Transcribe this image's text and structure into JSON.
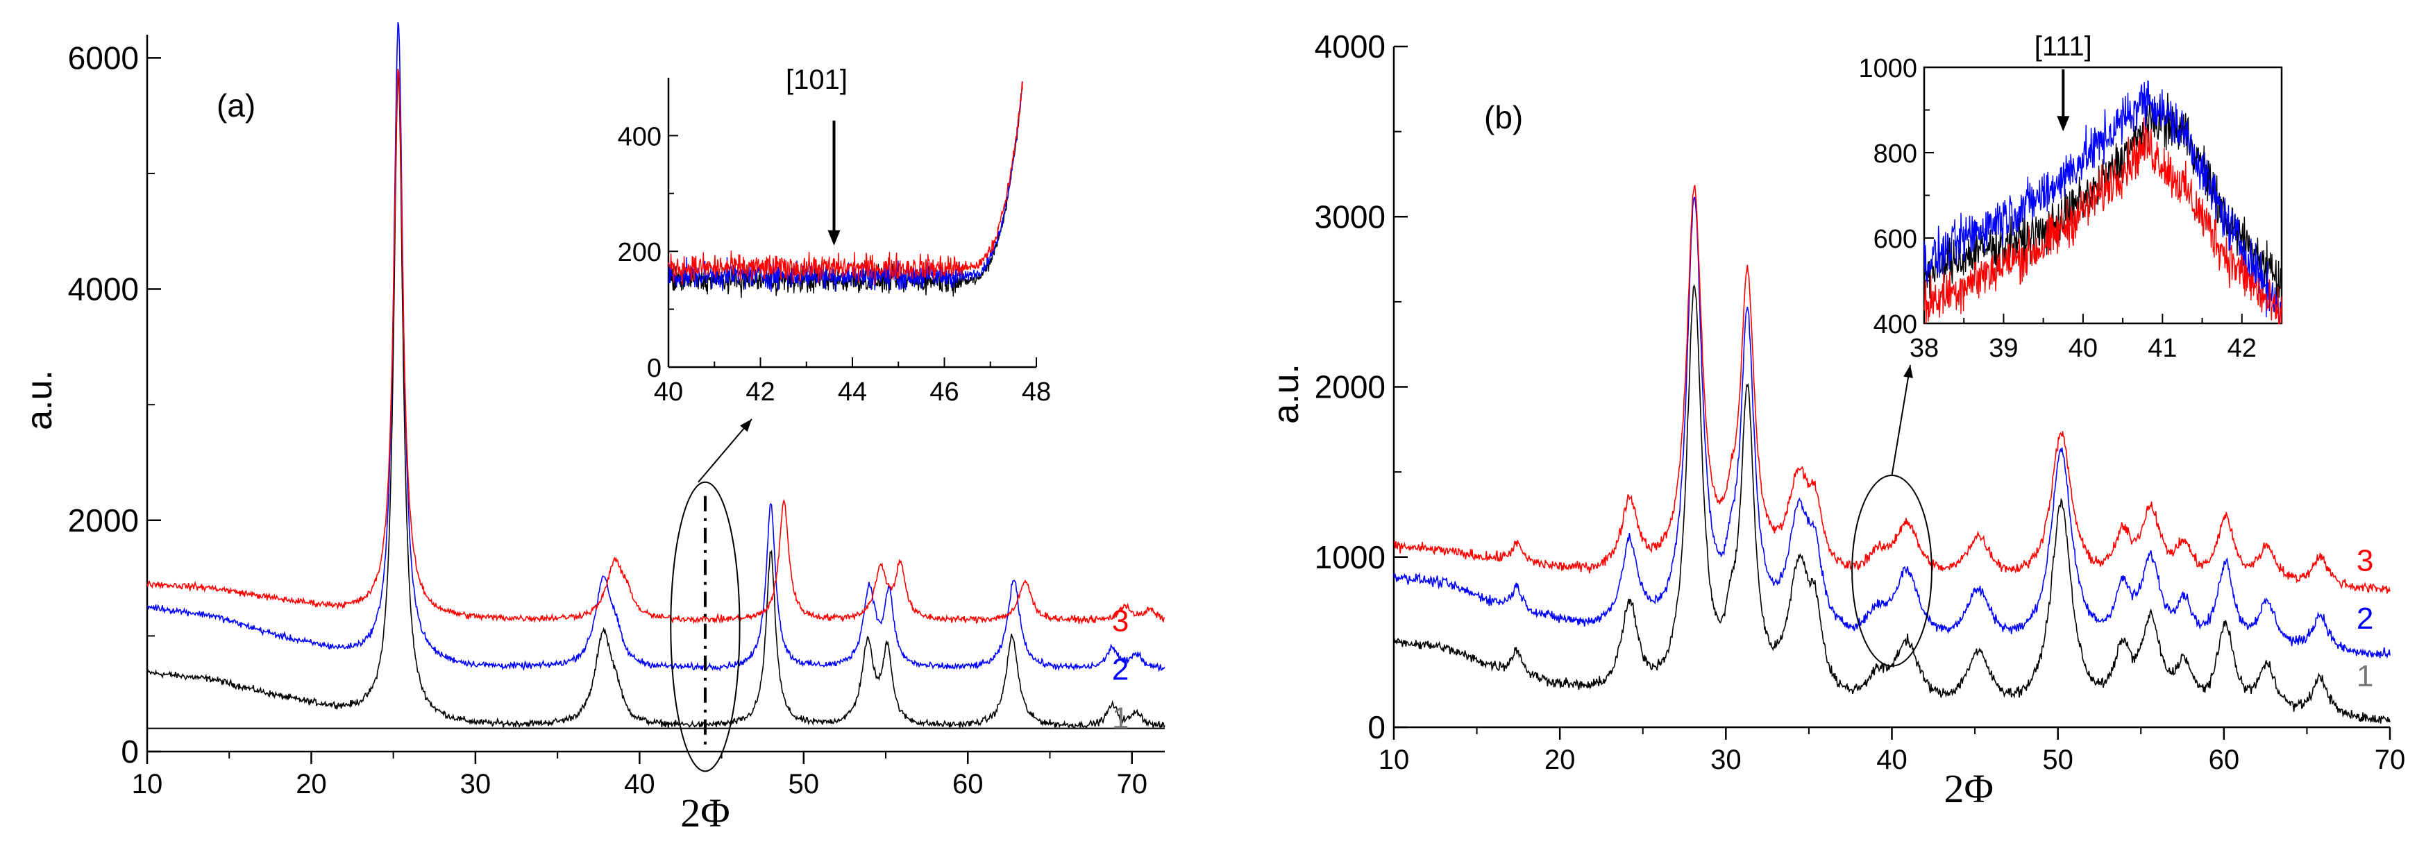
{
  "chart_data": [
    {
      "type": "line",
      "panel_label": "(a)",
      "xlabel": "2Φ",
      "ylabel": "a.u.",
      "xlim": [
        10,
        72
      ],
      "ylim": [
        0,
        6200
      ],
      "x_ticks": [
        10,
        20,
        30,
        40,
        50,
        60,
        70
      ],
      "y_ticks": [
        0,
        2000,
        4000,
        6000
      ],
      "baseline": 200,
      "series": [
        {
          "name": "1",
          "color": "#000000",
          "offset": 0,
          "bg": [
            [
              10,
              480
            ],
            [
              14,
              420
            ],
            [
              18,
              270
            ],
            [
              22,
              140
            ],
            [
              25,
              60
            ],
            [
              30,
              20
            ],
            [
              40,
              10
            ],
            [
              72,
              10
            ]
          ],
          "peaks": [
            [
              25.3,
              5600,
              0.35
            ],
            [
              37.8,
              800,
              0.6
            ],
            [
              38.6,
              180,
              0.4
            ],
            [
              48.0,
              1500,
              0.35
            ],
            [
              53.9,
              700,
              0.45
            ],
            [
              55.1,
              650,
              0.35
            ],
            [
              62.7,
              780,
              0.45
            ],
            [
              68.8,
              180,
              0.4
            ],
            [
              70.3,
              120,
              0.4
            ]
          ]
        },
        {
          "name": "2",
          "color": "#0000ff",
          "offset": 490,
          "bg": [
            [
              10,
              560
            ],
            [
              14,
              480
            ],
            [
              18,
              300
            ],
            [
              22,
              150
            ],
            [
              25,
              70
            ],
            [
              30,
              30
            ],
            [
              40,
              20
            ],
            [
              72,
              20
            ]
          ],
          "peaks": [
            [
              25.3,
              5550,
              0.35
            ],
            [
              37.8,
              770,
              0.6
            ],
            [
              38.6,
              170,
              0.4
            ],
            [
              48.0,
              1420,
              0.35
            ],
            [
              54.0,
              680,
              0.45
            ],
            [
              55.2,
              620,
              0.35
            ],
            [
              62.8,
              770,
              0.45
            ],
            [
              68.8,
              180,
              0.4
            ],
            [
              70.3,
              130,
              0.4
            ]
          ]
        },
        {
          "name": "3",
          "color": "#ff0000",
          "offset": 920,
          "bg": [
            [
              10,
              330
            ],
            [
              14,
              290
            ],
            [
              18,
              190
            ],
            [
              22,
              100
            ],
            [
              25,
              50
            ],
            [
              30,
              20
            ],
            [
              40,
              10
            ],
            [
              72,
              10
            ]
          ],
          "peaks": [
            [
              25.3,
              4750,
              0.35
            ],
            [
              38.5,
              500,
              0.6
            ],
            [
              39.3,
              140,
              0.4
            ],
            [
              48.8,
              1030,
              0.35
            ],
            [
              54.7,
              440,
              0.45
            ],
            [
              55.9,
              470,
              0.35
            ],
            [
              63.5,
              340,
              0.45
            ],
            [
              69.6,
              130,
              0.4
            ],
            [
              71.1,
              90,
              0.4
            ]
          ]
        }
      ],
      "curve_labels": [
        {
          "text": "1",
          "x": 69.3,
          "y": 200,
          "color": "#777777"
        },
        {
          "text": "2",
          "x": 69.3,
          "y": 620,
          "color": "#0000ff"
        },
        {
          "text": "3",
          "x": 69.3,
          "y": 1040,
          "color": "#ff0000"
        }
      ],
      "ellipse": {
        "cx": 44,
        "cy": 1080,
        "rx": 2.1,
        "ry": 1250
      },
      "dashdot_x": 44,
      "inset": {
        "xlim": [
          40,
          48
        ],
        "ylim": [
          0,
          500
        ],
        "x_ticks": [
          40,
          42,
          44,
          46,
          48
        ],
        "y_ticks": [
          0,
          200,
          400
        ],
        "peak_label": "[101]",
        "arrow_x": 43.6,
        "arrow_from": 420,
        "arrow_to": 210,
        "series": [
          {
            "name": "1",
            "color": "#000000",
            "level": 150
          },
          {
            "name": "2",
            "color": "#0000ff",
            "level": 158
          },
          {
            "name": "3",
            "color": "#ff0000",
            "level": 172
          }
        ],
        "rise_start": 46.4,
        "rise_end": 47.7,
        "rise_top": 490
      }
    },
    {
      "type": "line",
      "panel_label": "(b)",
      "xlabel": "2Φ",
      "ylabel": "a.u.",
      "xlim": [
        10,
        70
      ],
      "ylim": [
        0,
        4000
      ],
      "x_ticks": [
        10,
        20,
        30,
        40,
        50,
        60,
        70
      ],
      "y_ticks": [
        0,
        1000,
        2000,
        3000,
        4000
      ],
      "baseline": 0,
      "series": [
        {
          "name": "1",
          "color": "#000000",
          "offset": 0,
          "bg": [
            [
              10,
              500
            ],
            [
              13,
              460
            ],
            [
              17,
              300
            ],
            [
              22,
              180
            ],
            [
              30,
              100
            ],
            [
              40,
              60
            ],
            [
              55,
              40
            ],
            [
              70,
              30
            ]
          ],
          "peaks": [
            [
              17.4,
              150,
              0.4
            ],
            [
              24.2,
              520,
              0.6
            ],
            [
              28.1,
              2400,
              0.55
            ],
            [
              30.3,
              250,
              0.4
            ],
            [
              31.3,
              1750,
              0.5
            ],
            [
              34.4,
              760,
              0.8
            ],
            [
              35.4,
              380,
              0.5
            ],
            [
              39.1,
              150,
              0.8
            ],
            [
              40.9,
              380,
              0.9
            ],
            [
              45.2,
              330,
              0.9
            ],
            [
              50.2,
              1230,
              0.75
            ],
            [
              53.9,
              330,
              0.6
            ],
            [
              55.6,
              520,
              0.7
            ],
            [
              57.6,
              260,
              0.6
            ],
            [
              60.1,
              520,
              0.6
            ],
            [
              62.6,
              280,
              0.7
            ],
            [
              65.8,
              230,
              0.6
            ]
          ]
        },
        {
          "name": "2",
          "color": "#0000ff",
          "offset": 380,
          "bg": [
            [
              10,
              500
            ],
            [
              13,
              460
            ],
            [
              17,
              300
            ],
            [
              22,
              180
            ],
            [
              30,
              100
            ],
            [
              40,
              60
            ],
            [
              55,
              40
            ],
            [
              70,
              30
            ]
          ],
          "peaks": [
            [
              17.4,
              140,
              0.4
            ],
            [
              24.2,
              500,
              0.6
            ],
            [
              28.1,
              2550,
              0.55
            ],
            [
              30.3,
              230,
              0.4
            ],
            [
              31.3,
              1820,
              0.5
            ],
            [
              34.4,
              700,
              0.8
            ],
            [
              35.4,
              360,
              0.5
            ],
            [
              39.1,
              140,
              0.8
            ],
            [
              40.9,
              420,
              0.9
            ],
            [
              45.2,
              320,
              0.9
            ],
            [
              50.2,
              1170,
              0.75
            ],
            [
              53.9,
              310,
              0.6
            ],
            [
              55.6,
              500,
              0.7
            ],
            [
              57.6,
              250,
              0.6
            ],
            [
              60.1,
              500,
              0.6
            ],
            [
              62.6,
              270,
              0.7
            ],
            [
              65.8,
              220,
              0.6
            ]
          ]
        },
        {
          "name": "3",
          "color": "#ff0000",
          "offset": 780,
          "bg": [
            [
              10,
              280
            ],
            [
              13,
              250
            ],
            [
              17,
              180
            ],
            [
              22,
              110
            ],
            [
              30,
              60
            ],
            [
              40,
              40
            ],
            [
              55,
              30
            ],
            [
              70,
              20
            ]
          ],
          "peaks": [
            [
              17.4,
              110,
              0.4
            ],
            [
              24.2,
              420,
              0.6
            ],
            [
              28.1,
              2250,
              0.55
            ],
            [
              30.3,
              200,
              0.4
            ],
            [
              31.3,
              1720,
              0.5
            ],
            [
              34.4,
              560,
              0.8
            ],
            [
              35.4,
              300,
              0.5
            ],
            [
              39.1,
              120,
              0.8
            ],
            [
              40.9,
              330,
              0.9
            ],
            [
              45.2,
              260,
              0.9
            ],
            [
              50.2,
              880,
              0.75
            ],
            [
              53.9,
              250,
              0.6
            ],
            [
              55.6,
              420,
              0.7
            ],
            [
              57.6,
              200,
              0.6
            ],
            [
              60.1,
              390,
              0.6
            ],
            [
              62.6,
              220,
              0.7
            ],
            [
              65.8,
              180,
              0.6
            ]
          ]
        }
      ],
      "curve_labels": [
        {
          "text": "1",
          "x": 68.5,
          "y": 240,
          "color": "#777777"
        },
        {
          "text": "2",
          "x": 68.5,
          "y": 580,
          "color": "#0000ff"
        },
        {
          "text": "3",
          "x": 68.5,
          "y": 920,
          "color": "#ff0000"
        }
      ],
      "ellipse": {
        "cx": 40,
        "cy": 920,
        "rx": 2.4,
        "ry": 560
      },
      "inset": {
        "xlim": [
          38,
          42.5
        ],
        "ylim": [
          400,
          1000
        ],
        "x_ticks": [
          38,
          39,
          40,
          41,
          42
        ],
        "y_ticks": [
          400,
          600,
          800,
          1000
        ],
        "peak_label": "[111]",
        "arrow_x": 39.75,
        "arrow_from": 1000,
        "arrow_to": 850,
        "series": [
          {
            "name": "1",
            "color": "#000000",
            "anchors": [
              [
                38,
                520
              ],
              [
                38.7,
                570
              ],
              [
                39.5,
                610
              ],
              [
                40.2,
                720
              ],
              [
                40.9,
                880
              ],
              [
                41.3,
                850
              ],
              [
                41.8,
                640
              ],
              [
                42.5,
                500
              ]
            ]
          },
          {
            "name": "2",
            "color": "#0000ff",
            "anchors": [
              [
                38,
                540
              ],
              [
                38.7,
                620
              ],
              [
                39.5,
                700
              ],
              [
                40.2,
                820
              ],
              [
                40.8,
                930
              ],
              [
                41.3,
                840
              ],
              [
                41.8,
                640
              ],
              [
                42.5,
                430
              ]
            ]
          },
          {
            "name": "3",
            "color": "#ff0000",
            "anchors": [
              [
                38,
                440
              ],
              [
                38.7,
                510
              ],
              [
                39.5,
                580
              ],
              [
                40.2,
                700
              ],
              [
                40.8,
                820
              ],
              [
                41.3,
                710
              ],
              [
                41.8,
                560
              ],
              [
                42.5,
                410
              ]
            ]
          }
        ]
      }
    }
  ]
}
